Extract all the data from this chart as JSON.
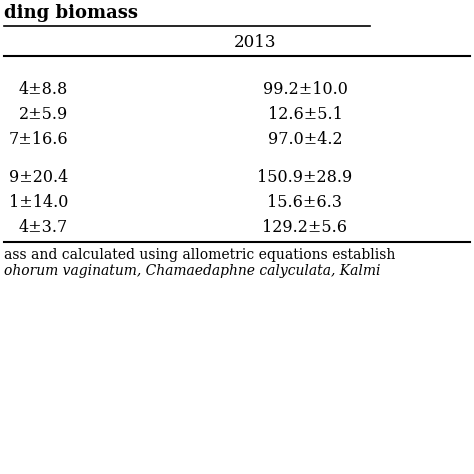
{
  "title_partial": "ding biomass",
  "year_header": "2013",
  "col1_values": [
    "4±8.8",
    "2±5.9",
    "7±16.6",
    "9±20.4",
    "1±14.0",
    "4±3.7"
  ],
  "col2_values": [
    "99.2±10.0",
    "12.6±5.1",
    "97.0±4.2",
    "150.9±28.9",
    "15.6±6.3",
    "129.2±5.6"
  ],
  "footnote_line1": "ass and calculated using allometric equations establish",
  "footnote_line2": "ohorum vaginatum, Chamaedaphne calyculata, Kalmi",
  "bg_color": "#ffffff",
  "text_color": "#000000",
  "font_size": 11.5,
  "header_font_size": 12,
  "title_font_size": 13,
  "footnote_font_size": 10.0,
  "line_color": "#333333"
}
